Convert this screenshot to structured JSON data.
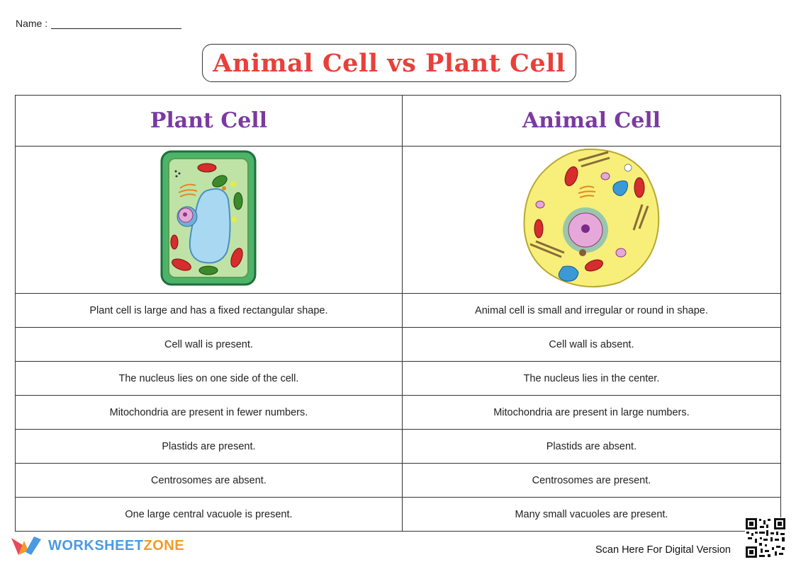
{
  "header": {
    "name_label": "Name :"
  },
  "title": "Animal Cell vs Plant Cell",
  "table": {
    "columns": [
      "Plant Cell",
      "Animal Cell"
    ],
    "rows": [
      [
        "Plant cell is large and has a fixed rectangular shape.",
        "Animal cell is small and irregular or round in shape."
      ],
      [
        "Cell wall is present.",
        "Cell wall is absent."
      ],
      [
        "The nucleus lies on one side of the cell.",
        "The nucleus lies in the center."
      ],
      [
        "Mitochondria are present in fewer numbers.",
        "Mitochondria are present in large numbers."
      ],
      [
        "Plastids are present.",
        "Plastids are absent."
      ],
      [
        "Centrosomes are absent.",
        "Centrosomes are present."
      ],
      [
        "One large central vacuole is present.",
        "Many small vacuoles are present."
      ]
    ]
  },
  "footer": {
    "brand_part1": "WORKSHEET",
    "brand_part2": "ZONE",
    "scan_text": "Scan Here For Digital Version"
  },
  "colors": {
    "title": "#e8403a",
    "header": "#7b3aa0",
    "brand_blue": "#4a9ae0",
    "brand_orange": "#f39a2a"
  }
}
